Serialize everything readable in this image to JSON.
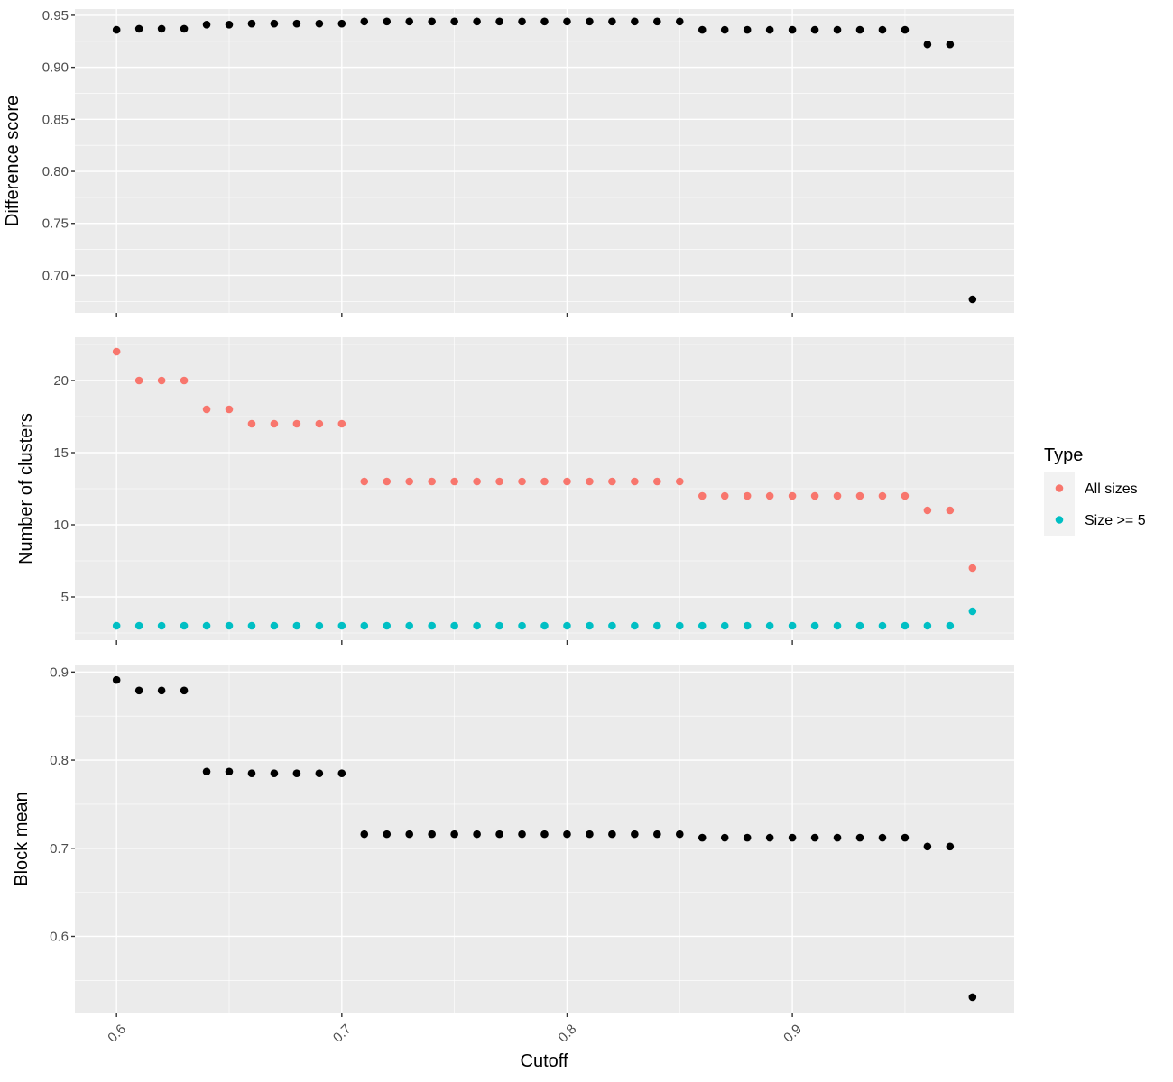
{
  "chart_data": {
    "type": "scatter",
    "xlabel": "Cutoff",
    "x": [
      0.6,
      0.61,
      0.62,
      0.63,
      0.64,
      0.65,
      0.66,
      0.67,
      0.68,
      0.69,
      0.7,
      0.71,
      0.72,
      0.73,
      0.74,
      0.75,
      0.76,
      0.77,
      0.78,
      0.79,
      0.8,
      0.81,
      0.82,
      0.83,
      0.84,
      0.85,
      0.86,
      0.87,
      0.88,
      0.89,
      0.9,
      0.91,
      0.92,
      0.93,
      0.94,
      0.95,
      0.96,
      0.97,
      0.98
    ],
    "xlim": [
      0.5815,
      0.9985
    ],
    "x_ticks": [
      0.6,
      0.7,
      0.8,
      0.9
    ],
    "x_tick_labels": [
      "0.6",
      "0.7",
      "0.8",
      "0.9"
    ],
    "legend": {
      "title": "Type",
      "position": "right",
      "items": [
        {
          "label": "All sizes",
          "color": "#F8766D"
        },
        {
          "label": "Size >= 5",
          "color": "#00BFC4"
        }
      ]
    },
    "panels": [
      {
        "ylabel": "Difference score",
        "ylim": [
          0.664,
          0.956
        ],
        "y_ticks": [
          0.7,
          0.75,
          0.8,
          0.85,
          0.9,
          0.95
        ],
        "y_tick_labels": [
          "0.70",
          "0.75",
          "0.80",
          "0.85",
          "0.90",
          "0.95"
        ],
        "series": [
          {
            "color": "#000000",
            "values": [
              0.936,
              0.937,
              0.937,
              0.937,
              0.941,
              0.941,
              0.942,
              0.942,
              0.942,
              0.942,
              0.942,
              0.944,
              0.944,
              0.944,
              0.944,
              0.944,
              0.944,
              0.944,
              0.944,
              0.944,
              0.944,
              0.944,
              0.944,
              0.944,
              0.944,
              0.944,
              0.936,
              0.936,
              0.936,
              0.936,
              0.936,
              0.936,
              0.936,
              0.936,
              0.936,
              0.936,
              0.922,
              0.922,
              0.677
            ]
          }
        ]
      },
      {
        "ylabel": "Number of clusters",
        "ylim": [
          2.0,
          23.0
        ],
        "y_ticks": [
          5,
          10,
          15,
          20
        ],
        "y_tick_labels": [
          "5",
          "10",
          "15",
          "20"
        ],
        "series": [
          {
            "name": "All sizes",
            "color": "#F8766D",
            "values": [
              22,
              20,
              20,
              20,
              18,
              18,
              17,
              17,
              17,
              17,
              17,
              13,
              13,
              13,
              13,
              13,
              13,
              13,
              13,
              13,
              13,
              13,
              13,
              13,
              13,
              13,
              12,
              12,
              12,
              12,
              12,
              12,
              12,
              12,
              12,
              12,
              11,
              11,
              7
            ]
          },
          {
            "name": "Size >= 5",
            "color": "#00BFC4",
            "values": [
              3,
              3,
              3,
              3,
              3,
              3,
              3,
              3,
              3,
              3,
              3,
              3,
              3,
              3,
              3,
              3,
              3,
              3,
              3,
              3,
              3,
              3,
              3,
              3,
              3,
              3,
              3,
              3,
              3,
              3,
              3,
              3,
              3,
              3,
              3,
              3,
              3,
              3,
              4
            ]
          }
        ]
      },
      {
        "ylabel": "Block mean",
        "ylim": [
          0.5135,
          0.9075
        ],
        "y_ticks": [
          0.6,
          0.7,
          0.8,
          0.9
        ],
        "y_tick_labels": [
          "0.6",
          "0.7",
          "0.8",
          "0.9"
        ],
        "series": [
          {
            "color": "#000000",
            "values": [
              0.891,
              0.879,
              0.879,
              0.879,
              0.787,
              0.787,
              0.785,
              0.785,
              0.785,
              0.785,
              0.785,
              0.716,
              0.716,
              0.716,
              0.716,
              0.716,
              0.716,
              0.716,
              0.716,
              0.716,
              0.716,
              0.716,
              0.716,
              0.716,
              0.716,
              0.716,
              0.712,
              0.712,
              0.712,
              0.712,
              0.712,
              0.712,
              0.712,
              0.712,
              0.712,
              0.712,
              0.702,
              0.702,
              0.531
            ]
          }
        ]
      }
    ]
  }
}
